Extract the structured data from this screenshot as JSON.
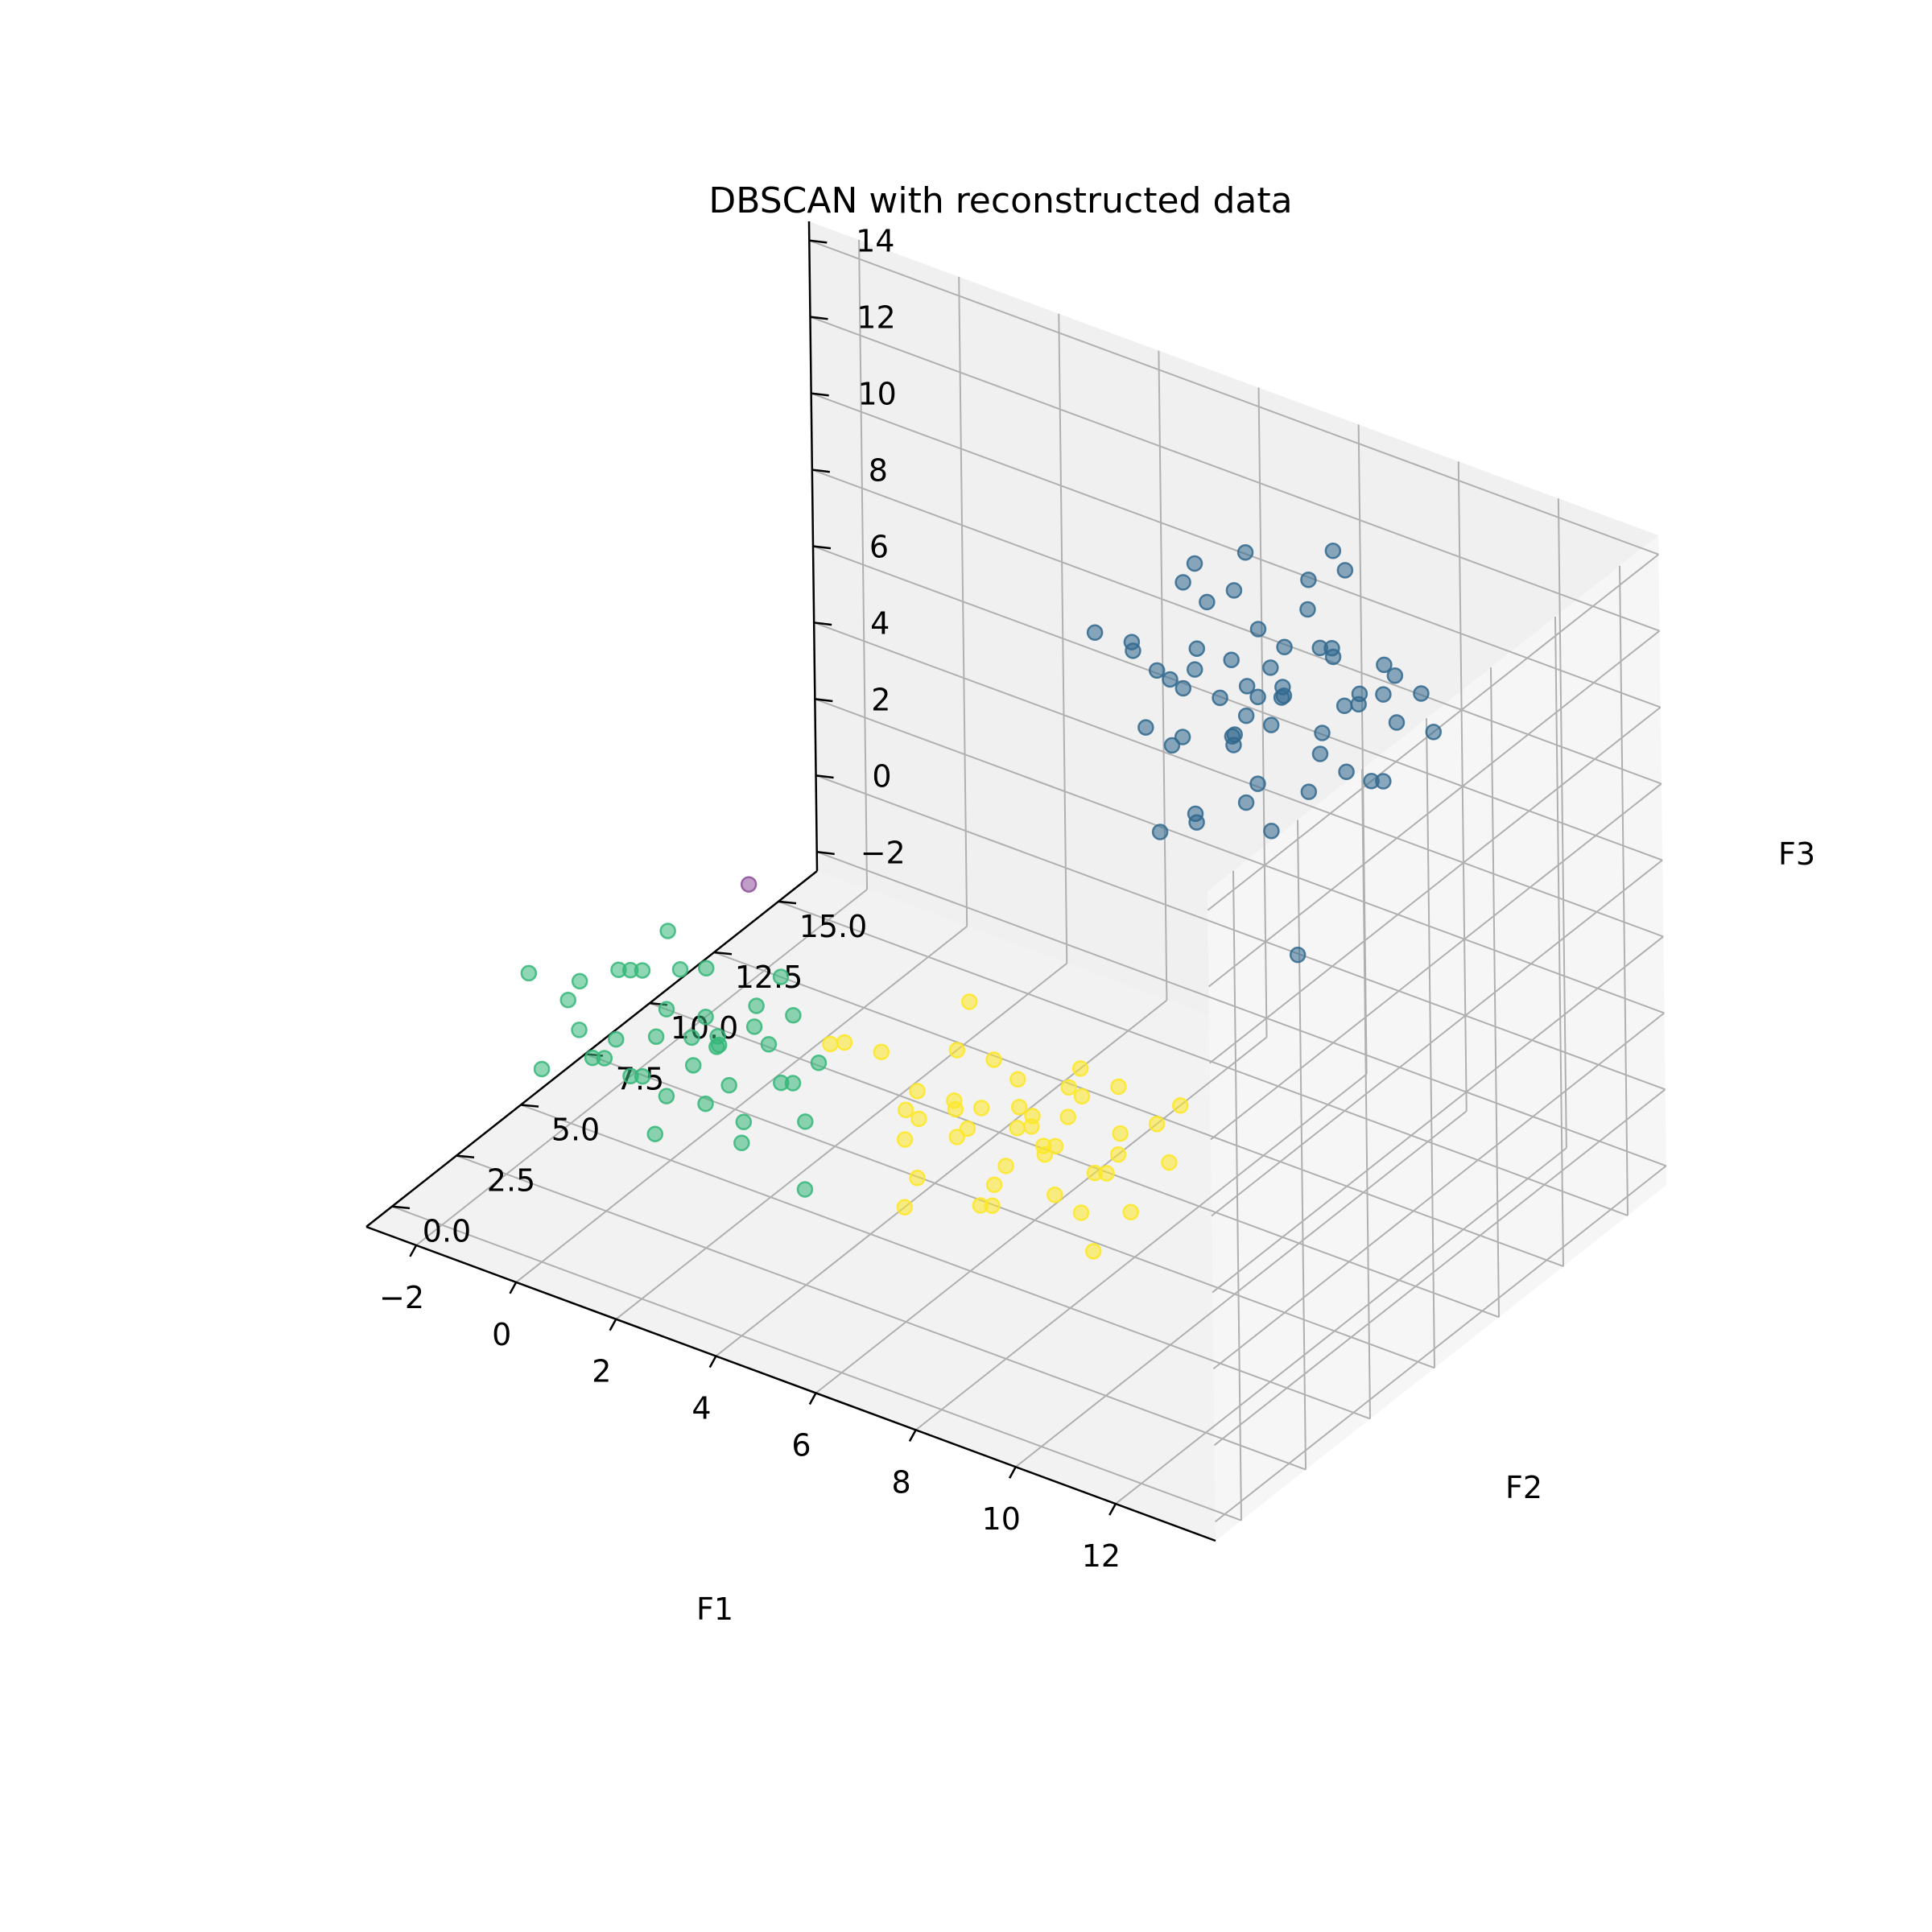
{
  "chart_data": {
    "type": "scatter",
    "title": "DBSCAN with reconstructed data",
    "projection": "3d",
    "xlabel": "F1",
    "ylabel": "F2",
    "zlabel": "F3",
    "xlim": [
      -3,
      14
    ],
    "ylim": [
      -1,
      16.5
    ],
    "zlim": [
      -2.5,
      14.5
    ],
    "xticks": [
      "−2",
      "0",
      "2",
      "4",
      "6",
      "8",
      "10",
      "12"
    ],
    "yticks": [
      "0.0",
      "2.5",
      "5.0",
      "7.5",
      "10.0",
      "12.5",
      "15.0"
    ],
    "zticks": [
      "−2",
      "0",
      "2",
      "4",
      "6",
      "8",
      "10",
      "12",
      "14"
    ],
    "grid": true,
    "colors": {
      "noise": "#8e4f9b",
      "cluster_0": "#31688e",
      "cluster_1": "#35b779",
      "cluster_2": "#fde725",
      "pane_back": "#f0f0f0",
      "pane_side": "#f6f6f6",
      "pane_floor": "#f2f2f2",
      "grid": "#b0b0b0"
    },
    "series": [
      {
        "label": "-1",
        "color": "#8e4f9b",
        "points": [
          [
            -1.5,
            11.0,
            0.8
          ]
        ]
      },
      {
        "label": "0",
        "color": "#31688e",
        "points": [
          [
            6.0,
            11.5,
            10.5
          ],
          [
            7.0,
            12.0,
            10.0
          ],
          [
            8.0,
            12.5,
            9.5
          ],
          [
            9.0,
            13.0,
            11.0
          ],
          [
            10.0,
            13.5,
            10.0
          ],
          [
            6.5,
            12.5,
            9.0
          ],
          [
            7.5,
            13.0,
            8.5
          ],
          [
            8.5,
            11.5,
            8.0
          ],
          [
            9.5,
            12.0,
            9.0
          ],
          [
            7.0,
            14.0,
            12.0
          ],
          [
            8.0,
            14.5,
            11.5
          ],
          [
            9.0,
            14.0,
            12.5
          ],
          [
            6.0,
            13.5,
            11.0
          ],
          [
            10.5,
            12.5,
            8.5
          ],
          [
            7.5,
            11.0,
            7.0
          ],
          [
            8.5,
            12.0,
            6.5
          ],
          [
            6.5,
            14.5,
            10.5
          ],
          [
            9.5,
            13.5,
            9.5
          ],
          [
            8.0,
            13.0,
            10.0
          ],
          [
            7.0,
            12.5,
            11.5
          ],
          [
            10.0,
            14.0,
            9.0
          ],
          [
            6.0,
            12.0,
            8.0
          ],
          [
            8.5,
            14.0,
            8.0
          ],
          [
            9.0,
            12.5,
            7.5
          ],
          [
            7.5,
            14.5,
            9.5
          ],
          [
            6.5,
            11.5,
            10.0
          ],
          [
            10.5,
            13.0,
            11.0
          ],
          [
            8.0,
            11.5,
            9.0
          ],
          [
            9.5,
            14.5,
            10.0
          ],
          [
            7.0,
            13.5,
            7.5
          ],
          [
            6.0,
            14.0,
            9.0
          ],
          [
            8.5,
            13.5,
            11.5
          ],
          [
            9.0,
            11.5,
            10.5
          ],
          [
            7.5,
            12.5,
            8.0
          ],
          [
            10.0,
            12.0,
            10.5
          ],
          [
            6.5,
            13.0,
            12.0
          ],
          [
            8.0,
            12.0,
            7.0
          ],
          [
            9.5,
            13.0,
            8.0
          ],
          [
            7.0,
            11.5,
            8.5
          ],
          [
            8.5,
            14.5,
            12.5
          ],
          [
            11.0,
            13.5,
            9.5
          ],
          [
            5.5,
            12.5,
            9.5
          ],
          [
            6.0,
            12.5,
            5.0
          ],
          [
            9.0,
            12.0,
            3.5
          ],
          [
            7.0,
            12.0,
            6.0
          ],
          [
            8.0,
            13.5,
            9.0
          ],
          [
            9.0,
            13.5,
            10.5
          ],
          [
            7.5,
            13.5,
            10.5
          ],
          [
            8.5,
            12.5,
            10.0
          ],
          [
            10.0,
            13.0,
            8.0
          ],
          [
            6.5,
            12.0,
            9.5
          ],
          [
            5.0,
            12.0,
            10.0
          ],
          [
            10.5,
            14.0,
            10.0
          ],
          [
            7.0,
            14.0,
            8.5
          ],
          [
            8.0,
            11.5,
            11.0
          ],
          [
            9.5,
            12.5,
            11.5
          ],
          [
            6.0,
            13.0,
            7.0
          ],
          [
            7.5,
            12.0,
            9.5
          ],
          [
            9.0,
            14.5,
            9.0
          ],
          [
            8.0,
            13.0,
            8.5
          ]
        ]
      },
      {
        "label": "1",
        "color": "#35b779",
        "points": [
          [
            -1.0,
            3.5,
            2.5
          ],
          [
            0.0,
            4.0,
            3.0
          ],
          [
            1.0,
            4.5,
            2.0
          ],
          [
            2.0,
            5.0,
            1.5
          ],
          [
            0.5,
            3.0,
            1.0
          ],
          [
            -0.5,
            2.5,
            2.0
          ],
          [
            1.5,
            3.5,
            0.5
          ],
          [
            2.5,
            4.5,
            1.0
          ],
          [
            0.0,
            5.0,
            3.5
          ],
          [
            1.0,
            2.5,
            0.0
          ],
          [
            -1.5,
            4.0,
            1.5
          ],
          [
            2.0,
            3.0,
            2.5
          ],
          [
            0.5,
            4.5,
            3.0
          ],
          [
            1.5,
            5.5,
            2.0
          ],
          [
            -1.0,
            2.0,
            1.0
          ],
          [
            3.0,
            4.0,
            1.5
          ],
          [
            0.0,
            3.5,
            0.5
          ],
          [
            2.5,
            2.5,
            2.0
          ],
          [
            1.0,
            5.0,
            1.0
          ],
          [
            -0.5,
            4.5,
            2.5
          ],
          [
            1.5,
            2.0,
            1.5
          ],
          [
            2.0,
            4.0,
            0.0
          ],
          [
            0.5,
            2.0,
            2.5
          ],
          [
            3.5,
            3.5,
            1.0
          ],
          [
            -1.0,
            5.0,
            2.0
          ],
          [
            1.0,
            3.0,
            3.0
          ],
          [
            2.5,
            5.0,
            2.5
          ],
          [
            0.0,
            2.5,
            1.5
          ],
          [
            1.5,
            4.0,
            2.0
          ],
          [
            4.0,
            2.5,
            0.0
          ],
          [
            -0.5,
            3.0,
            1.0
          ],
          [
            2.0,
            5.5,
            3.0
          ],
          [
            1.0,
            4.0,
            1.0
          ],
          [
            0.5,
            5.5,
            2.5
          ],
          [
            3.0,
            2.0,
            1.0
          ],
          [
            -1.5,
            2.5,
            3.0
          ],
          [
            2.5,
            3.5,
            3.0
          ],
          [
            0.0,
            4.5,
            1.0
          ],
          [
            1.5,
            3.0,
            2.5
          ],
          [
            3.0,
            5.0,
            1.5
          ]
        ]
      },
      {
        "label": "2",
        "color": "#fde725",
        "points": [
          [
            5.0,
            5.0,
            1.0
          ],
          [
            6.0,
            4.5,
            2.0
          ],
          [
            7.0,
            5.5,
            1.5
          ],
          [
            8.0,
            6.0,
            0.5
          ],
          [
            9.0,
            5.0,
            2.0
          ],
          [
            6.5,
            6.5,
            1.0
          ],
          [
            7.5,
            4.0,
            2.5
          ],
          [
            8.5,
            5.5,
            1.0
          ],
          [
            5.5,
            3.5,
            1.5
          ],
          [
            6.0,
            6.0,
            2.5
          ],
          [
            7.0,
            3.5,
            0.5
          ],
          [
            8.0,
            4.5,
            2.0
          ],
          [
            9.5,
            6.0,
            1.5
          ],
          [
            6.5,
            5.0,
            0.0
          ],
          [
            7.5,
            6.5,
            2.0
          ],
          [
            8.5,
            3.5,
            1.5
          ],
          [
            5.5,
            5.5,
            0.5
          ],
          [
            7.0,
            5.0,
            3.0
          ],
          [
            8.0,
            7.0,
            1.0
          ],
          [
            6.0,
            3.0,
            1.0
          ],
          [
            9.0,
            4.0,
            0.0
          ],
          [
            7.5,
            5.0,
            1.5
          ],
          [
            6.5,
            4.0,
            2.0
          ],
          [
            8.5,
            6.0,
            3.0
          ],
          [
            5.0,
            6.5,
            2.0
          ],
          [
            7.0,
            6.0,
            0.5
          ],
          [
            8.0,
            5.0,
            2.5
          ],
          [
            6.0,
            5.5,
            1.5
          ],
          [
            9.5,
            4.5,
            1.0
          ],
          [
            7.5,
            3.0,
            1.0
          ],
          [
            5.5,
            4.0,
            2.5
          ],
          [
            8.5,
            4.5,
            0.5
          ],
          [
            6.5,
            6.0,
            1.5
          ],
          [
            7.0,
            4.5,
            1.0
          ],
          [
            8.0,
            5.5,
            3.5
          ],
          [
            6.0,
            2.5,
            0.5
          ],
          [
            9.0,
            6.5,
            2.0
          ],
          [
            7.5,
            6.0,
            2.5
          ],
          [
            5.0,
            4.5,
            1.5
          ],
          [
            6.5,
            3.5,
            3.0
          ],
          [
            3.0,
            6.0,
            1.5
          ],
          [
            4.0,
            5.5,
            2.0
          ],
          [
            5.0,
            7.0,
            3.0
          ],
          [
            10.0,
            5.5,
            3.5
          ],
          [
            3.5,
            4.5,
            2.5
          ]
        ]
      }
    ]
  }
}
